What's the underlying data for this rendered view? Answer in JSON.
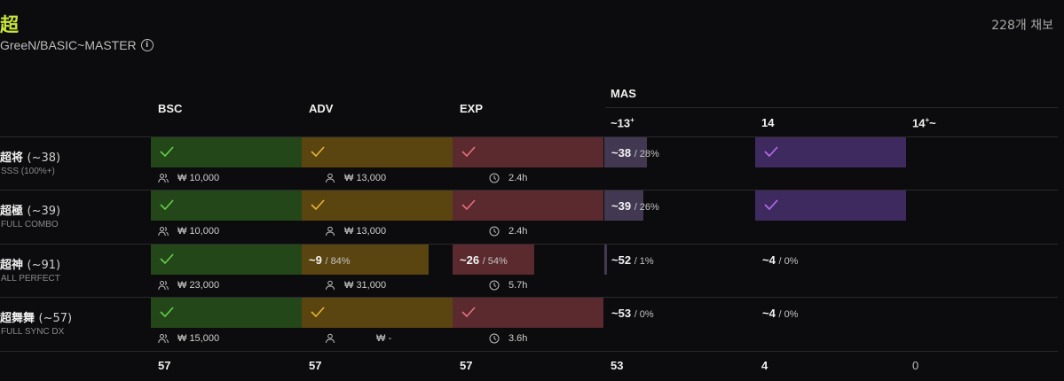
{
  "page": {
    "title": "超",
    "subtitle": "GreeN/BASIC~MASTER",
    "count": "228개 채보"
  },
  "headers": {
    "bsc": "BSC",
    "adv": "ADV",
    "exp": "EXP",
    "mas": "MAS",
    "mas13": "~13",
    "mas13sup": "+",
    "mas14": "14",
    "mas14p": "14",
    "mas14psup": "+",
    "mas14psuf": "~"
  },
  "colors": {
    "bsc": "#24471a",
    "adv": "#5a4510",
    "exp": "#5a2a2e",
    "mas": "#433852",
    "mas_check": "#3f2a60",
    "check_bsc": "#62d24a",
    "check_adv": "#e7b435",
    "check_exp": "#ea6d7f",
    "check_mas": "#b86df0"
  },
  "rows": [
    {
      "name": "超将",
      "threshold": "(~38)",
      "sub": "SSS (100%+)",
      "bsc": {
        "done": true
      },
      "adv": {
        "done": true
      },
      "exp": {
        "done": true
      },
      "mas13": {
        "value": "~38",
        "pct": "/ 28%",
        "fill": 0.28
      },
      "mas14": {
        "done": true
      },
      "stats": {
        "bsc": "₩ 10,000",
        "adv": "₩ 13,000",
        "exp": "2.4h"
      }
    },
    {
      "name": "超極",
      "threshold": "(~39)",
      "sub": "FULL COMBO",
      "bsc": {
        "done": true
      },
      "adv": {
        "done": true
      },
      "exp": {
        "done": true
      },
      "mas13": {
        "value": "~39",
        "pct": "/ 26%",
        "fill": 0.26
      },
      "mas14": {
        "done": true
      },
      "stats": {
        "bsc": "₩ 10,000",
        "adv": "₩ 13,000",
        "exp": "2.4h"
      }
    },
    {
      "name": "超神",
      "threshold": "(~91)",
      "sub": "ALL PERFECT",
      "bsc": {
        "done": true
      },
      "adv": {
        "value": "~9",
        "pct": "/ 84%",
        "fill": 0.84
      },
      "exp": {
        "value": "~26",
        "pct": "/ 54%",
        "fill": 0.54
      },
      "mas13": {
        "value": "~52",
        "pct": "/ 1%",
        "fill": 0.01
      },
      "mas14": {
        "value": "~4",
        "pct": "/ 0%",
        "fill": 0
      },
      "stats": {
        "bsc": "₩ 23,000",
        "adv": "₩ 31,000",
        "exp": "5.7h"
      }
    },
    {
      "name": "超舞舞",
      "threshold": "(~57)",
      "sub": "FULL SYNC DX",
      "bsc": {
        "done": true
      },
      "adv": {
        "done": true
      },
      "exp": {
        "done": true
      },
      "mas13": {
        "value": "~53",
        "pct": "/ 0%",
        "fill": 0
      },
      "mas14": {
        "value": "~4",
        "pct": "/ 0%",
        "fill": 0
      },
      "stats": {
        "bsc": "₩ 15,000",
        "adv": "₩ -",
        "exp": "3.6h"
      }
    }
  ],
  "totals": {
    "bsc": "57",
    "adv": "57",
    "exp": "57",
    "mas13": "53",
    "mas14": "4",
    "mas14p": "0"
  }
}
